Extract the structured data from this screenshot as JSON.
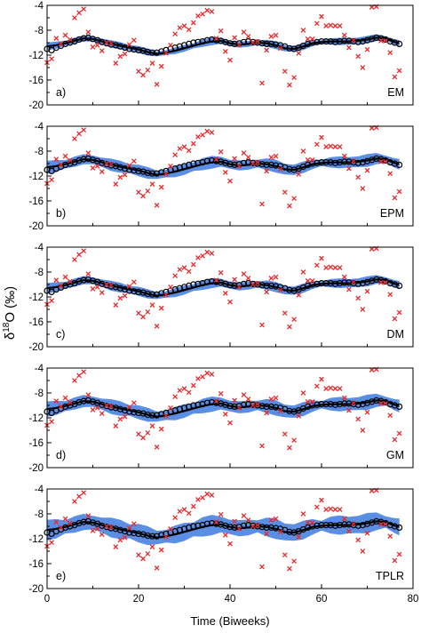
{
  "figure": {
    "ylabel_base": "δ",
    "ylabel_sup": "18",
    "ylabel_rest": "O (‰)",
    "xlabel": "Time (Biweeks)"
  },
  "colors": {
    "band": "#5b8fe6",
    "line": "#000000",
    "obs_marker": "#e8292b",
    "circle": "#000000"
  },
  "chart_data": [
    {
      "type": "line",
      "panel_letter": "a)",
      "method": "EM",
      "xlim": [
        0,
        80
      ],
      "ylim": [
        -20,
        -4
      ],
      "xticks": [
        "0",
        "20",
        "40",
        "60",
        "80"
      ],
      "yticks": [
        "-4",
        "-8",
        "-12",
        "-16",
        "-20"
      ],
      "band_scale": 0.6
    },
    {
      "type": "line",
      "panel_letter": "b)",
      "method": "EPM",
      "xlim": [
        0,
        80
      ],
      "ylim": [
        -20,
        -4
      ],
      "xticks": [
        "0",
        "20",
        "40",
        "60",
        "80"
      ],
      "yticks": [
        "-4",
        "-8",
        "-12",
        "-16",
        "-20"
      ],
      "band_scale": 1.0
    },
    {
      "type": "line",
      "panel_letter": "c)",
      "method": "DM",
      "xlim": [
        0,
        80
      ],
      "ylim": [
        -20,
        -4
      ],
      "xticks": [
        "0",
        "20",
        "40",
        "60",
        "80"
      ],
      "yticks": [
        "-4",
        "-8",
        "-12",
        "-16",
        "-20"
      ],
      "band_scale": 0.8
    },
    {
      "type": "line",
      "panel_letter": "d)",
      "method": "GM",
      "xlim": [
        0,
        80
      ],
      "ylim": [
        -20,
        -4
      ],
      "xticks": [
        "0",
        "20",
        "40",
        "60",
        "80"
      ],
      "yticks": [
        "-4",
        "-8",
        "-12",
        "-16",
        "-20"
      ],
      "band_scale": 1.2
    },
    {
      "type": "line",
      "panel_letter": "e)",
      "method": "TPLR",
      "xlim": [
        0,
        80
      ],
      "ylim": [
        -20,
        -4
      ],
      "xticks": [
        "0",
        "20",
        "40",
        "60",
        "80"
      ],
      "yticks": [
        "-4",
        "-8",
        "-12",
        "-16",
        "-20"
      ],
      "band_scale": 1.6
    }
  ],
  "series_shared": {
    "observed_x": [
      0,
      1,
      2,
      3,
      4,
      5,
      6,
      7,
      8,
      9,
      10,
      11,
      12,
      13,
      14,
      15,
      16,
      17,
      18,
      19,
      20,
      21,
      22,
      23,
      24,
      25,
      26,
      27,
      28,
      29,
      30,
      31,
      32,
      33,
      34,
      35,
      36,
      37,
      38,
      39,
      40,
      41,
      42,
      43,
      44,
      45,
      46,
      47,
      48,
      49,
      50,
      51,
      52,
      53,
      54,
      55,
      56,
      57,
      58,
      59,
      60,
      61,
      62,
      63,
      64,
      65,
      66,
      67,
      68,
      69,
      70,
      71,
      72,
      73,
      74,
      75,
      76,
      77
    ],
    "observed_y": [
      -13.2,
      -12.6,
      -9.3,
      -10.2,
      -8.8,
      -9.5,
      -6.0,
      -5.2,
      -4.6,
      -8.3,
      -10.7,
      -10.4,
      -11.3,
      -10.0,
      -10.1,
      -13.3,
      -12.2,
      -11.8,
      -10.3,
      -9.6,
      -14.6,
      -15.2,
      -14.4,
      -13.3,
      -16.7,
      -13.8,
      -11.7,
      -10.4,
      -8.6,
      -7.6,
      -7.3,
      -7.9,
      -6.8,
      -5.7,
      -5.4,
      -4.8,
      -5.0,
      -9.3,
      -8.1,
      -11.4,
      -12.8,
      -9.2,
      -10.4,
      -8.3,
      -9.0,
      -10.0,
      -9.8,
      -16.5,
      -11.2,
      -9.0,
      -8.8,
      -10.9,
      -14.6,
      -16.8,
      -15.6,
      -11.7,
      -8.0,
      -9.4,
      -9.4,
      -6.9,
      -5.8,
      -7.3,
      -7.2,
      -7.3,
      -7.3,
      -8.8,
      -10.8,
      -9.6,
      -12.2,
      -14.0,
      -11.1,
      -4.3,
      -4.2,
      -9.7,
      -9.7,
      -11.6,
      -15.5,
      -14.5
    ],
    "smooth_x": [
      0,
      2,
      4,
      6,
      8,
      10,
      12,
      14,
      16,
      18,
      20,
      22,
      24,
      26,
      28,
      30,
      32,
      34,
      36,
      38,
      40,
      42,
      44,
      46,
      48,
      50,
      52,
      54,
      56,
      58,
      60,
      62,
      64,
      66,
      68,
      70,
      72,
      74,
      76,
      77
    ],
    "smooth_y": [
      -10.6,
      -10.4,
      -10.1,
      -9.7,
      -9.3,
      -9.4,
      -9.8,
      -10.2,
      -10.5,
      -10.8,
      -11.1,
      -11.5,
      -11.8,
      -11.6,
      -11.3,
      -10.9,
      -10.5,
      -10.1,
      -9.8,
      -9.7,
      -10.1,
      -10.3,
      -10.2,
      -10.0,
      -10.1,
      -10.4,
      -10.9,
      -11.0,
      -10.6,
      -10.1,
      -9.9,
      -9.8,
      -9.8,
      -9.8,
      -9.7,
      -9.5,
      -9.2,
      -9.3,
      -9.9,
      -10.1
    ],
    "circles_x": [
      0,
      1,
      2,
      3,
      4,
      5,
      6,
      7,
      8,
      9,
      10,
      11,
      12,
      13,
      14,
      15,
      16,
      17,
      18,
      19,
      20,
      21,
      22,
      23,
      24,
      25,
      26,
      27,
      28,
      29,
      30,
      31,
      32,
      33,
      34,
      35,
      36,
      37,
      38,
      39,
      40,
      41,
      42,
      43,
      44,
      45,
      46,
      47,
      48,
      49,
      50,
      51,
      52,
      53,
      54,
      55,
      56,
      57,
      58,
      59,
      60,
      61,
      62,
      63,
      64,
      65,
      66,
      67,
      68,
      69,
      70,
      71,
      72,
      73,
      74,
      75,
      76,
      77
    ],
    "circles_y": [
      -11.0,
      -11.2,
      -10.8,
      -10.5,
      -10.2,
      -10.0,
      -9.8,
      -9.5,
      -9.3,
      -9.2,
      -9.4,
      -9.6,
      -9.9,
      -10.1,
      -10.3,
      -10.4,
      -10.6,
      -10.8,
      -11.0,
      -11.1,
      -11.2,
      -11.3,
      -11.5,
      -11.6,
      -11.6,
      -11.4,
      -11.2,
      -11.0,
      -10.8,
      -10.6,
      -10.4,
      -10.2,
      -10.0,
      -9.9,
      -9.8,
      -9.6,
      -9.5,
      -9.6,
      -9.7,
      -9.9,
      -10.1,
      -10.2,
      -10.1,
      -9.9,
      -9.8,
      -9.9,
      -10.0,
      -10.1,
      -10.2,
      -10.2,
      -10.3,
      -10.4,
      -10.6,
      -10.9,
      -11.0,
      -10.8,
      -10.5,
      -10.2,
      -10.0,
      -9.9,
      -9.8,
      -9.8,
      -9.8,
      -9.9,
      -9.8,
      -9.7,
      -9.7,
      -9.8,
      -9.9,
      -9.8,
      -9.6,
      -9.4,
      -9.2,
      -9.3,
      -9.5,
      -9.8,
      -10.0,
      -10.2
    ]
  }
}
